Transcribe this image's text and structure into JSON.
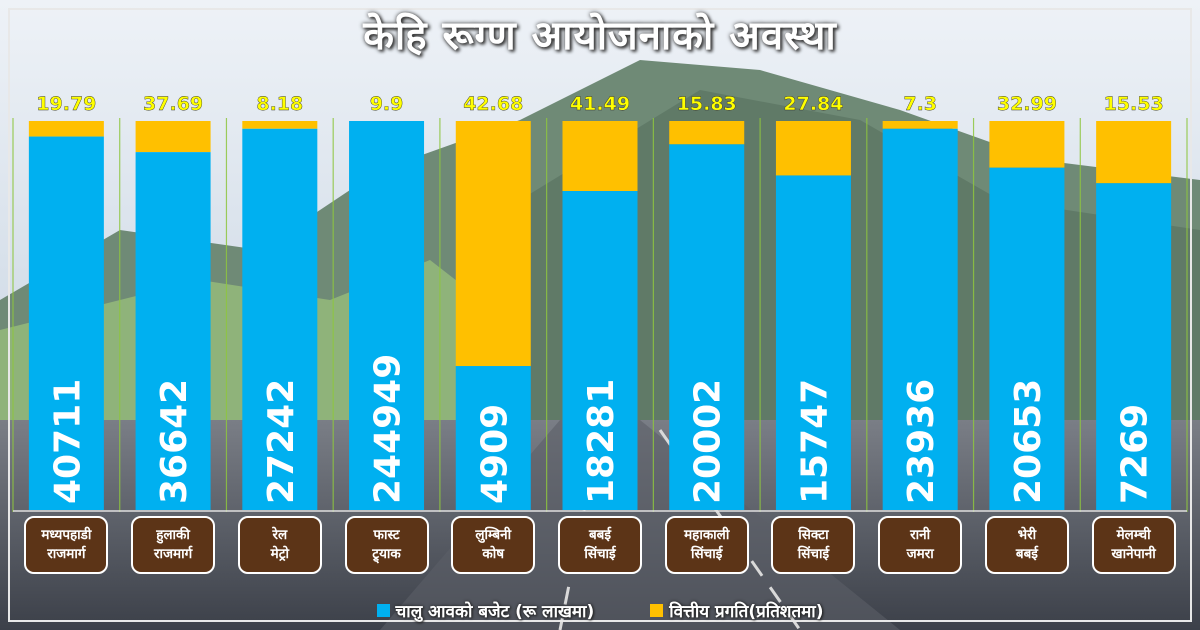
{
  "title": "केहि रूग्ण आयोजनाको अवस्था",
  "colors": {
    "budget": "#00b0f0",
    "progress": "#ffc000",
    "label_box": "#5c3417",
    "progress_text": "#ffff00"
  },
  "legend": {
    "budget": "चालु आवको बजेट (रू लाखमा)",
    "progress": "वित्तीय प्रगति(प्रतिशतमा)"
  },
  "chart_data": {
    "type": "bar",
    "stacked_percent": true,
    "categories": [
      "मध्यपहाडी\nराजमार्ग",
      "हुलाकी\nराजमार्ग",
      "रेल\nमेट्रो",
      "फास्ट\nट्र्याक",
      "लुम्बिनी\nकोष",
      "बबई\nसिंचाई",
      "महाकाली\nसिंचाई",
      "सिक्टा\nसिंचाई",
      "रानी\nजमरा",
      "भेरी\nबबई",
      "मेलम्ची\nखानेपानी"
    ],
    "series": [
      {
        "name": "चालु आवको बजेट (रू लाखमा)",
        "values": [
          40711,
          36642,
          27242,
          244949,
          4909,
          18281,
          20002,
          15747,
          23936,
          20653,
          7269
        ]
      },
      {
        "name": "वित्तीय प्रगति(प्रतिशतमा)",
        "values": [
          19.79,
          37.69,
          8.18,
          9.9,
          42.68,
          41.49,
          15.83,
          27.84,
          7.3,
          32.99,
          15.53
        ]
      }
    ],
    "budget_labels": [
      "40711",
      "36642",
      "27242",
      "244949",
      "4909",
      "18281",
      "20002",
      "15747",
      "23936",
      "20653",
      "7269"
    ],
    "progress_labels": [
      "19.79",
      "37.69",
      "8.18",
      "9.9",
      "42.68",
      "41.49",
      "15.83",
      "27.84",
      "7.3",
      "32.99",
      "15.53"
    ],
    "progress_share_of_bar": [
      0.04,
      0.08,
      0.02,
      0.0,
      0.63,
      0.18,
      0.06,
      0.14,
      0.02,
      0.12,
      0.16
    ],
    "grid": true,
    "legend_position": "bottom"
  }
}
